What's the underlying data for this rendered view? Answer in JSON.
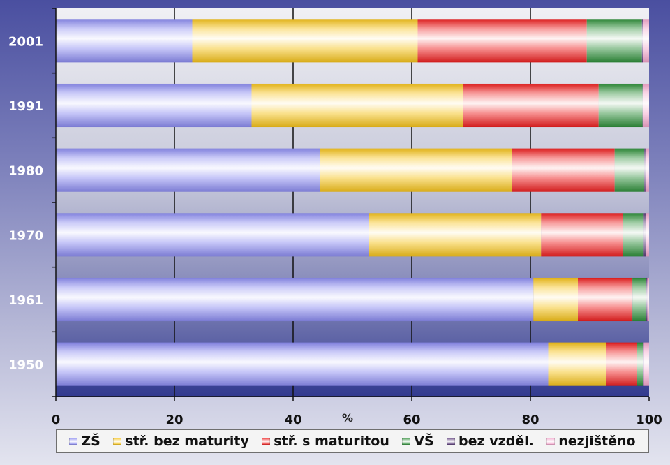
{
  "chart_data": {
    "type": "bar",
    "orientation": "horizontal",
    "stacked": true,
    "title": "",
    "xlabel": "%",
    "ylabel": "",
    "xlim": [
      0,
      100
    ],
    "x_ticks": [
      "0",
      "20",
      "40",
      "60",
      "80",
      "100"
    ],
    "grid": true,
    "legend_position": "bottom",
    "categories": [
      "2001",
      "1991",
      "1980",
      "1970",
      "1961",
      "1950"
    ],
    "series": [
      {
        "name": "ZŠ",
        "color": "#8c8cf0",
        "values": [
          23.0,
          33.0,
          44.5,
          52.8,
          80.5,
          83.0
        ]
      },
      {
        "name": "stř. bez maturity",
        "color": "#f5c21a",
        "values": [
          38.0,
          35.6,
          32.4,
          29.0,
          7.5,
          9.8
        ]
      },
      {
        "name": "stř. s maturitou",
        "color": "#ee2020",
        "values": [
          28.5,
          22.9,
          17.3,
          13.8,
          9.2,
          5.2
        ]
      },
      {
        "name": "VŠ",
        "color": "#2f8f3a",
        "values": [
          9.3,
          7.4,
          5.0,
          3.5,
          2.3,
          1.0
        ]
      },
      {
        "name": "bez vzděl.",
        "color": "#5a3a7a",
        "values": [
          0.2,
          0.1,
          0.2,
          0.4,
          0.2,
          0.1
        ]
      },
      {
        "name": "nezjištěno",
        "color": "#f3a6cc",
        "values": [
          1.0,
          1.0,
          0.6,
          0.5,
          0.3,
          0.9
        ]
      }
    ]
  }
}
